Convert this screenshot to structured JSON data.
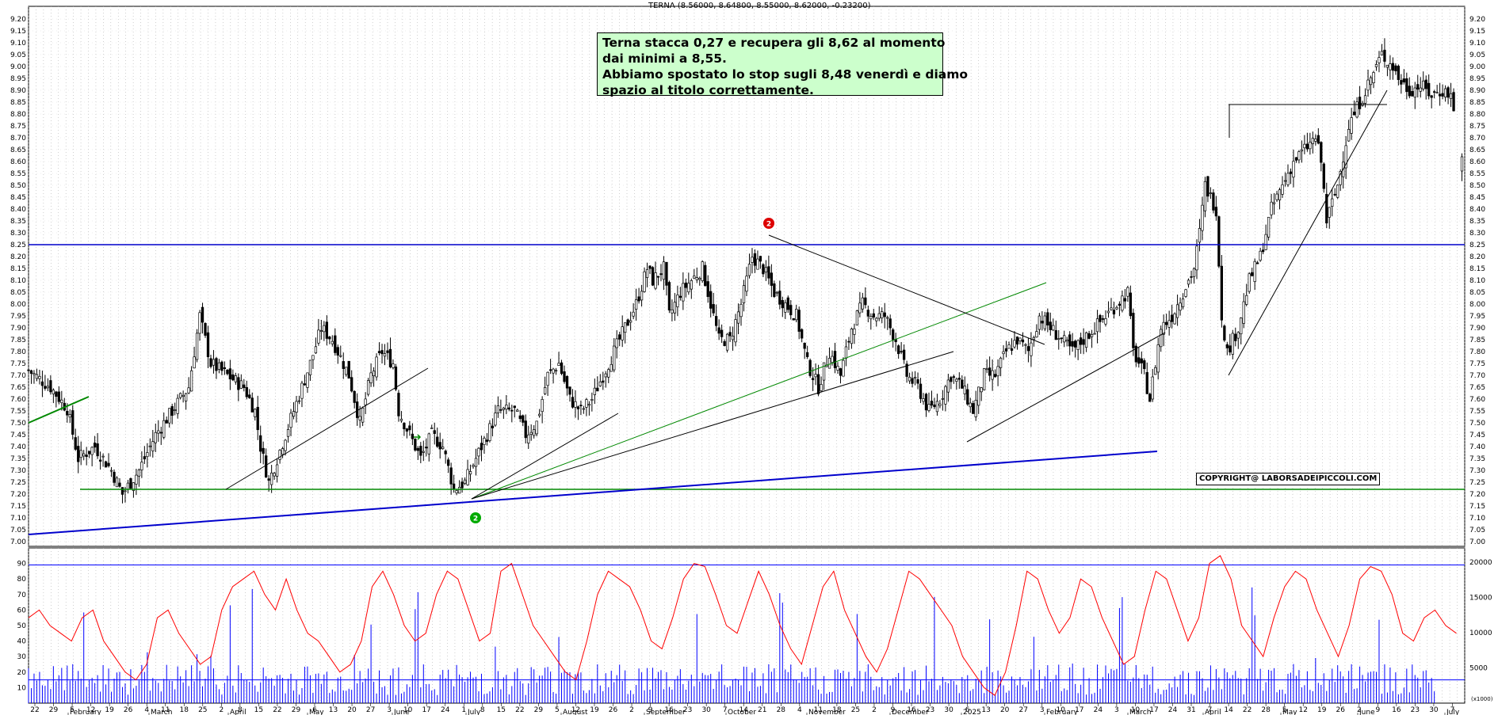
{
  "header": {
    "title": "TERNA (8.56000, 8.64800, 8.55000, 8.62000, -0.23200)"
  },
  "note": {
    "lines": [
      "Terna stacca 0,27 e recupera gli 8,62 al momento",
      "dai minimi a 8,55.",
      "Abbiamo spostato lo stop sugli 8,48 venerdì e diamo",
      "spazio al titolo correttamente."
    ]
  },
  "copyright": "COPYRIGHT@ LABORSADEIPICCOLI.COM",
  "colors": {
    "up": "#000000",
    "down": "#000000",
    "grid": "#b0b0b0",
    "trend_blue": "#0000cc",
    "trend_green": "#008800",
    "rsi": "#ff0000",
    "volume": "#0000ff"
  },
  "chart_data": [
    {
      "type": "candlestick",
      "title": "TERNA (8.56000, 8.64800, 8.55000, 8.62000, -0.23200)",
      "ylim": [
        6.98,
        9.22
      ],
      "y_ticks": [
        "7.00",
        "7.05",
        "7.10",
        "7.15",
        "7.20",
        "7.25",
        "7.30",
        "7.35",
        "7.40",
        "7.45",
        "7.50",
        "7.55",
        "7.60",
        "7.65",
        "7.70",
        "7.75",
        "7.80",
        "7.85",
        "7.90",
        "7.95",
        "8.00",
        "8.05",
        "8.10",
        "8.15",
        "8.20",
        "8.25",
        "8.30",
        "8.35",
        "8.40",
        "8.45",
        "8.50",
        "8.55",
        "8.60",
        "8.65",
        "8.70",
        "8.75",
        "8.80",
        "8.85",
        "8.90",
        "8.95",
        "9.00",
        "9.05",
        "9.10",
        "9.15",
        "9.20"
      ],
      "close_path": [
        [
          0,
          7.72
        ],
        [
          8,
          7.65
        ],
        [
          14,
          7.56
        ],
        [
          18,
          7.35
        ],
        [
          24,
          7.4
        ],
        [
          30,
          7.3
        ],
        [
          34,
          7.2
        ],
        [
          40,
          7.3
        ],
        [
          46,
          7.45
        ],
        [
          52,
          7.55
        ],
        [
          58,
          7.65
        ],
        [
          62,
          7.95
        ],
        [
          66,
          7.75
        ],
        [
          72,
          7.7
        ],
        [
          78,
          7.65
        ],
        [
          82,
          7.55
        ],
        [
          84,
          7.4
        ],
        [
          87,
          7.25
        ],
        [
          90,
          7.35
        ],
        [
          96,
          7.55
        ],
        [
          102,
          7.75
        ],
        [
          106,
          7.9
        ],
        [
          110,
          7.85
        ],
        [
          116,
          7.7
        ],
        [
          120,
          7.5
        ],
        [
          124,
          7.7
        ],
        [
          128,
          7.8
        ],
        [
          132,
          7.75
        ],
        [
          134,
          7.55
        ],
        [
          138,
          7.45
        ],
        [
          142,
          7.35
        ],
        [
          146,
          7.45
        ],
        [
          150,
          7.4
        ],
        [
          154,
          7.22
        ],
        [
          158,
          7.25
        ],
        [
          162,
          7.35
        ],
        [
          166,
          7.45
        ],
        [
          170,
          7.55
        ],
        [
          176,
          7.55
        ],
        [
          180,
          7.45
        ],
        [
          184,
          7.5
        ],
        [
          188,
          7.7
        ],
        [
          192,
          7.75
        ],
        [
          196,
          7.6
        ],
        [
          200,
          7.55
        ],
        [
          204,
          7.6
        ],
        [
          208,
          7.7
        ],
        [
          212,
          7.8
        ],
        [
          216,
          7.9
        ],
        [
          220,
          8.0
        ],
        [
          224,
          8.15
        ],
        [
          226,
          8.1
        ],
        [
          230,
          8.15
        ],
        [
          232,
          7.95
        ],
        [
          236,
          8.05
        ],
        [
          240,
          8.1
        ],
        [
          244,
          8.15
        ],
        [
          246,
          8.05
        ],
        [
          250,
          7.85
        ],
        [
          254,
          7.85
        ],
        [
          258,
          8.0
        ],
        [
          262,
          8.2
        ],
        [
          266,
          8.15
        ],
        [
          270,
          8.05
        ],
        [
          274,
          8.0
        ],
        [
          278,
          7.95
        ],
        [
          282,
          7.75
        ],
        [
          286,
          7.65
        ],
        [
          290,
          7.8
        ],
        [
          294,
          7.7
        ],
        [
          298,
          7.9
        ],
        [
          302,
          8.0
        ],
        [
          306,
          7.95
        ],
        [
          310,
          7.95
        ],
        [
          314,
          7.85
        ],
        [
          318,
          7.7
        ],
        [
          322,
          7.65
        ],
        [
          326,
          7.55
        ],
        [
          330,
          7.6
        ],
        [
          334,
          7.7
        ],
        [
          338,
          7.65
        ],
        [
          342,
          7.55
        ],
        [
          346,
          7.7
        ],
        [
          350,
          7.7
        ],
        [
          354,
          7.8
        ],
        [
          358,
          7.85
        ],
        [
          362,
          7.8
        ],
        [
          366,
          7.95
        ],
        [
          370,
          7.9
        ],
        [
          374,
          7.85
        ],
        [
          378,
          7.8
        ],
        [
          382,
          7.85
        ],
        [
          386,
          7.9
        ],
        [
          390,
          7.95
        ],
        [
          394,
          8.0
        ],
        [
          398,
          8.05
        ],
        [
          400,
          7.8
        ],
        [
          404,
          7.7
        ],
        [
          406,
          7.6
        ],
        [
          408,
          7.75
        ],
        [
          410,
          7.9
        ],
        [
          414,
          7.95
        ],
        [
          418,
          8.05
        ],
        [
          422,
          8.15
        ],
        [
          424,
          8.3
        ],
        [
          426,
          8.5
        ],
        [
          428,
          8.45
        ],
        [
          430,
          8.4
        ],
        [
          432,
          7.95
        ],
        [
          434,
          7.8
        ],
        [
          438,
          7.9
        ],
        [
          442,
          8.1
        ],
        [
          446,
          8.2
        ],
        [
          450,
          8.4
        ],
        [
          454,
          8.5
        ],
        [
          458,
          8.6
        ],
        [
          462,
          8.65
        ],
        [
          466,
          8.7
        ],
        [
          468,
          8.6
        ],
        [
          470,
          8.35
        ],
        [
          474,
          8.5
        ],
        [
          478,
          8.75
        ],
        [
          482,
          8.85
        ],
        [
          486,
          8.95
        ],
        [
          490,
          9.05
        ],
        [
          494,
          9.0
        ],
        [
          496,
          8.95
        ],
        [
          500,
          8.9
        ],
        [
          504,
          8.92
        ],
        [
          508,
          8.88
        ],
        [
          512,
          8.9
        ],
        [
          515,
          8.88
        ],
        [
          519,
          8.6
        ]
      ]
    },
    {
      "type": "line",
      "ylim": [
        0,
        100
      ],
      "y_ticks": [
        "10",
        "20",
        "30",
        "40",
        "50",
        "60",
        "70",
        "80",
        "90"
      ],
      "right_ticks": [
        "5000",
        "10000",
        "15000",
        "20000"
      ],
      "right_unit": "(x1000)",
      "series": [
        {
          "values": [
            55,
            60,
            50,
            45,
            40,
            55,
            60,
            40,
            30,
            20,
            15,
            25,
            55,
            60,
            45,
            35,
            25,
            30,
            60,
            75,
            80,
            85,
            70,
            60,
            80,
            60,
            45,
            40,
            30,
            20,
            25,
            40,
            75,
            85,
            70,
            50,
            40,
            45,
            70,
            85,
            80,
            60,
            40,
            45,
            85,
            90,
            70,
            50,
            40,
            30,
            20,
            15,
            40,
            70,
            85,
            80,
            75,
            60,
            40,
            35,
            55,
            80,
            90,
            88,
            70,
            50,
            45,
            65,
            85,
            70,
            50,
            35,
            25,
            50,
            75,
            85,
            60,
            45,
            30,
            20,
            35,
            60,
            85,
            80,
            70,
            60,
            50,
            30,
            20,
            10,
            5,
            20,
            50,
            85,
            80,
            60,
            45,
            55,
            80,
            75,
            55,
            40,
            25,
            30,
            60,
            85,
            80,
            60,
            40,
            55,
            90,
            95,
            80,
            50,
            40,
            30,
            55,
            75,
            85,
            80,
            60,
            45,
            30,
            50,
            80,
            88,
            85,
            70,
            45,
            40,
            55,
            60,
            50,
            45
          ]
        }
      ]
    }
  ],
  "x_axis": {
    "day_labels": [
      "22",
      "29",
      "5",
      "12",
      "19",
      "26",
      "4",
      "11",
      "18",
      "25",
      "2",
      "8",
      "15",
      "22",
      "29",
      "6",
      "13",
      "20",
      "27",
      "3",
      "10",
      "17",
      "24",
      "1",
      "8",
      "15",
      "22",
      "29",
      "5",
      "12",
      "19",
      "26",
      "2",
      "9",
      "16",
      "23",
      "30",
      "7",
      "14",
      "21",
      "28",
      "4",
      "11",
      "18",
      "25",
      "2",
      "9",
      "16",
      "23",
      "30",
      "6",
      "13",
      "20",
      "27",
      "3",
      "10",
      "17",
      "24",
      "3",
      "10",
      "17",
      "24",
      "31",
      "7",
      "14",
      "22",
      "28",
      "5",
      "12",
      "19",
      "26",
      "2",
      "9",
      "16",
      "23",
      "30",
      "7"
    ],
    "month_labels": [
      "February",
      "March",
      "April",
      "May",
      "June",
      "July",
      "August",
      "September",
      "October",
      "November",
      "December",
      "2025",
      "February",
      "March",
      "April",
      "May",
      "June",
      "July"
    ]
  }
}
